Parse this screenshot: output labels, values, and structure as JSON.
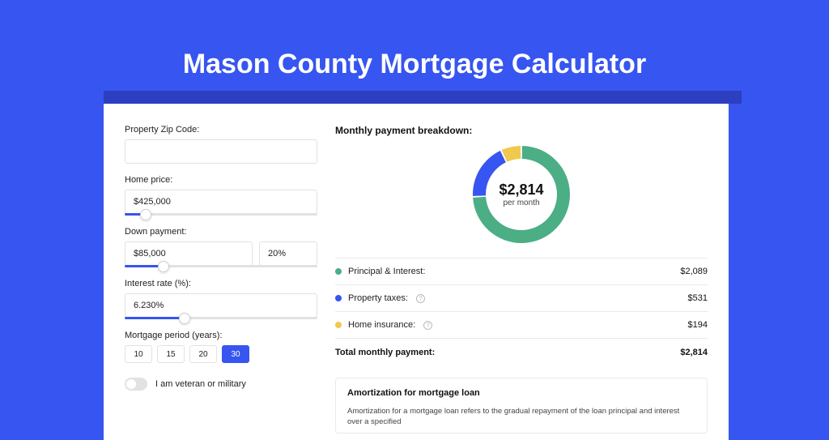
{
  "page": {
    "title": "Mason County Mortgage Calculator",
    "background_color": "#3755f0",
    "card_background": "#ffffff"
  },
  "form": {
    "zip": {
      "label": "Property Zip Code:",
      "value": ""
    },
    "home_price": {
      "label": "Home price:",
      "value": "$425,000",
      "slider_pct": 11
    },
    "down_payment": {
      "label": "Down payment:",
      "value": "$85,000",
      "pct": "20%",
      "slider_pct": 20
    },
    "interest_rate": {
      "label": "Interest rate (%):",
      "value": "6.230%",
      "slider_pct": 31
    },
    "mortgage_period": {
      "label": "Mortgage period (years):",
      "options": [
        "10",
        "15",
        "20",
        "30"
      ],
      "selected": "30"
    },
    "veteran": {
      "label": "I am veteran or military",
      "checked": false
    }
  },
  "breakdown": {
    "title": "Monthly payment breakdown:",
    "center_amount": "$2,814",
    "center_sub": "per month",
    "donut": {
      "type": "donut",
      "size": 120,
      "thickness": 16,
      "slices": [
        {
          "key": "principal_interest",
          "value": 2089,
          "color": "#4bae85"
        },
        {
          "key": "property_taxes",
          "value": 531,
          "color": "#3755f0"
        },
        {
          "key": "home_insurance",
          "value": 194,
          "color": "#f0c94e"
        }
      ],
      "gap_deg": 2
    },
    "items": [
      {
        "label": "Principal & Interest:",
        "value": "$2,089",
        "color": "#4bae85",
        "info": false
      },
      {
        "label": "Property taxes:",
        "value": "$531",
        "color": "#3755f0",
        "info": true
      },
      {
        "label": "Home insurance:",
        "value": "$194",
        "color": "#f0c94e",
        "info": true
      }
    ],
    "total_label": "Total monthly payment:",
    "total_value": "$2,814"
  },
  "amortization": {
    "title": "Amortization for mortgage loan",
    "text": "Amortization for a mortgage loan refers to the gradual repayment of the loan principal and interest over a specified"
  }
}
